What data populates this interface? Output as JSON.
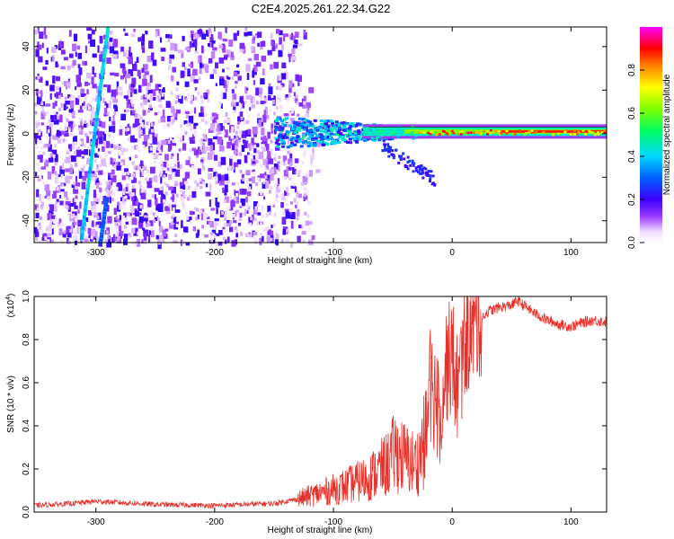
{
  "title": "C2E4.2025.261.22.34.G22",
  "chart_data": [
    {
      "type": "heatmap",
      "xlabel": "Height of straight line (km)",
      "ylabel": "Frequency (Hz)",
      "xlim": [
        -352,
        130
      ],
      "ylim": [
        -50,
        49
      ],
      "xticks": [
        -300,
        -200,
        -100,
        0,
        100
      ],
      "yticks": [
        -40,
        -20,
        0,
        20,
        40
      ],
      "colorbar": {
        "label": "Normalized spectral amplitude",
        "range": [
          0,
          1
        ],
        "ticks": [
          0.0,
          0.2,
          0.4,
          0.6,
          0.8
        ]
      },
      "features": [
        {
          "name": "main-carrier-line",
          "frequency_hz": 1,
          "x_range_km": [
            -150,
            130
          ],
          "peak_amplitude": 0.95
        },
        {
          "name": "diagonal-trace",
          "from": {
            "x": -312,
            "y": -48
          },
          "to": {
            "x": -290,
            "y": 48
          },
          "amplitude": 0.4
        },
        {
          "name": "lower-trace",
          "from": {
            "x": -296,
            "y": -50
          },
          "to": {
            "x": -291,
            "y": -30
          },
          "amplitude": 0.3
        },
        {
          "name": "noise-region",
          "x_range_km": [
            -352,
            -135
          ],
          "fade_out_km": -110
        }
      ]
    },
    {
      "type": "line",
      "xlabel": "Height of straight line (km)",
      "ylabel": "SNR (10 * v/v)",
      "y_multiplier_label": "(x10",
      "y_multiplier_exp": "4",
      "y_multiplier_close": ")",
      "xlim": [
        -352,
        130
      ],
      "ylim": [
        0,
        1.0
      ],
      "xticks": [
        -300,
        -200,
        -100,
        0,
        100
      ],
      "yticks": [
        0.0,
        0.2,
        0.4,
        0.6,
        0.8,
        1.0
      ],
      "series": [
        {
          "name": "SNR",
          "color": "#e8302a",
          "x": [
            -352,
            -320,
            -300,
            -250,
            -200,
            -150,
            -130,
            -110,
            -90,
            -70,
            -55,
            -48,
            -40,
            -30,
            -22,
            -18,
            -10,
            -5,
            0,
            5,
            10,
            20,
            30,
            40,
            50,
            55,
            60,
            70,
            80,
            90,
            100,
            110,
            120,
            130
          ],
          "y": [
            0.03,
            0.04,
            0.05,
            0.035,
            0.03,
            0.04,
            0.06,
            0.09,
            0.12,
            0.16,
            0.22,
            0.28,
            0.25,
            0.22,
            0.35,
            0.6,
            0.48,
            0.68,
            0.72,
            0.55,
            0.78,
            0.88,
            0.93,
            0.95,
            0.96,
            0.98,
            0.96,
            0.92,
            0.89,
            0.87,
            0.86,
            0.88,
            0.89,
            0.88
          ]
        }
      ]
    }
  ]
}
